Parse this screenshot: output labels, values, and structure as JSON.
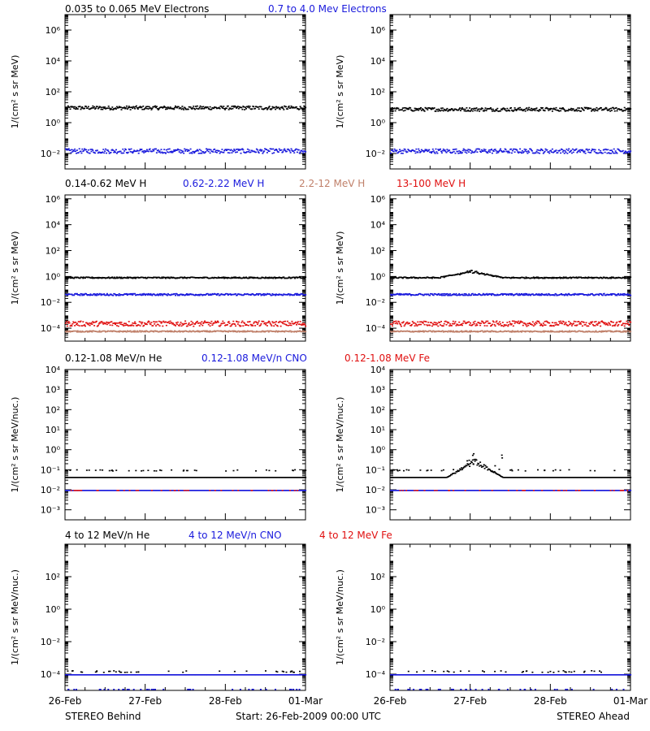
{
  "colors": {
    "black": "#000000",
    "blue": "#1a1adc",
    "red": "#e01010",
    "tan": "#c0806a"
  },
  "x_tick_labels": [
    "26-Feb",
    "27-Feb",
    "28-Feb",
    "01-Mar"
  ],
  "footer": {
    "left": "STEREO Behind",
    "center": "Start: 26-Feb-2009 00:00 UTC",
    "right": "STEREO Ahead"
  },
  "chart_data": [
    {
      "type": "scatter",
      "row": "electrons",
      "legend": [
        {
          "text": "0.035 to 0.065 MeV Electrons",
          "color": "black"
        },
        {
          "text": "0.7 to 4.0 Mev Electrons",
          "color": "blue"
        }
      ],
      "ylabel": "1/(cm² s sr MeV)",
      "yscale": "log",
      "ylim_exp": [
        -3,
        7
      ],
      "ytick_exp": [
        -2,
        0,
        2,
        4,
        6
      ],
      "xlim_days": [
        0,
        3
      ],
      "panels": [
        {
          "spacecraft": "STEREO Behind",
          "series": [
            {
              "color": "black",
              "level_exp": 1.0,
              "spread": 0.12
            },
            {
              "color": "blue",
              "level_exp": -1.8,
              "spread": 0.15
            }
          ]
        },
        {
          "spacecraft": "STEREO Ahead",
          "series": [
            {
              "color": "black",
              "level_exp": 0.9,
              "spread": 0.12
            },
            {
              "color": "blue",
              "level_exp": -1.8,
              "spread": 0.15
            }
          ]
        }
      ]
    },
    {
      "type": "scatter",
      "row": "protons",
      "legend": [
        {
          "text": "0.14-0.62 MeV H",
          "color": "black"
        },
        {
          "text": "0.62-2.22 MeV H",
          "color": "blue"
        },
        {
          "text": "2.2-12 MeV H",
          "color": "tan"
        },
        {
          "text": "13-100 MeV H",
          "color": "red"
        }
      ],
      "ylabel": "1/(cm² s sr MeV)",
      "yscale": "log",
      "ylim_exp": [
        -5,
        6.3
      ],
      "ytick_exp": [
        -4,
        -2,
        0,
        2,
        4,
        6
      ],
      "xlim_days": [
        0,
        3
      ],
      "panels": [
        {
          "spacecraft": "STEREO Behind",
          "series": [
            {
              "color": "black",
              "level_exp": -0.05,
              "spread": 0.05
            },
            {
              "color": "blue",
              "level_exp": -1.35,
              "spread": 0.07
            },
            {
              "color": "red",
              "level_exp": -3.6,
              "spread": 0.2
            },
            {
              "color": "tan",
              "level_exp": -4.2,
              "spread": 0.05
            }
          ]
        },
        {
          "spacecraft": "STEREO Ahead",
          "enhancement": {
            "series": "black",
            "start_day": 0.6,
            "end_day": 1.4,
            "peak_exp": 0.5
          },
          "series": [
            {
              "color": "black",
              "level_exp": -0.05,
              "spread": 0.05
            },
            {
              "color": "blue",
              "level_exp": -1.35,
              "spread": 0.07
            },
            {
              "color": "red",
              "level_exp": -3.6,
              "spread": 0.2
            },
            {
              "color": "tan",
              "level_exp": -4.2,
              "spread": 0.05
            }
          ]
        }
      ]
    },
    {
      "type": "scatter",
      "row": "heavy-ions-low",
      "legend": [
        {
          "text": "0.12-1.08 MeV/n He",
          "color": "black"
        },
        {
          "text": "0.12-1.08 MeV/n CNO",
          "color": "blue"
        },
        {
          "text": "0.12-1.08 MeV Fe",
          "color": "red"
        }
      ],
      "ylabel": "1/(cm² s sr MeV/nuc.)",
      "yscale": "log",
      "ylim_exp": [
        -3.5,
        4
      ],
      "ytick_exp": [
        -3,
        -2,
        -1,
        0,
        1,
        2,
        3,
        4
      ],
      "xlim_days": [
        0,
        3
      ],
      "panels": [
        {
          "spacecraft": "STEREO Behind",
          "series": [
            {
              "color": "black",
              "level_exp": -1.35,
              "spread": 0.0
            },
            {
              "color": "black",
              "level_exp": -1.0,
              "spread": 0.03,
              "sparse": true
            },
            {
              "color": "blue",
              "level_exp": -2.0,
              "spread": 0.0
            },
            {
              "color": "red",
              "level_exp": -2.0,
              "spread": 0.0,
              "sparse": true
            }
          ]
        },
        {
          "spacecraft": "STEREO Ahead",
          "enhancement": {
            "series": "black",
            "start_day": 0.7,
            "end_day": 1.4,
            "peak_exp": -0.4
          },
          "series": [
            {
              "color": "black",
              "level_exp": -1.35,
              "spread": 0.0
            },
            {
              "color": "black",
              "level_exp": -1.0,
              "spread": 0.03,
              "sparse": true
            },
            {
              "color": "blue",
              "level_exp": -2.0,
              "spread": 0.0
            },
            {
              "color": "red",
              "level_exp": -2.0,
              "spread": 0.0,
              "sparse": true
            }
          ]
        }
      ]
    },
    {
      "type": "scatter",
      "row": "heavy-ions-high",
      "legend": [
        {
          "text": "4 to 12 MeV/n He",
          "color": "black"
        },
        {
          "text": "4 to 12 MeV/n CNO",
          "color": "blue"
        },
        {
          "text": "4 to 12 MeV Fe",
          "color": "red"
        }
      ],
      "ylabel": "1/(cm² s sr MeV/nuc.)",
      "yscale": "log",
      "ylim_exp": [
        -5,
        4
      ],
      "ytick_exp": [
        -4,
        -2,
        0,
        2
      ],
      "xlim_days": [
        0,
        3
      ],
      "panels": [
        {
          "spacecraft": "STEREO Behind",
          "series": [
            {
              "color": "blue",
              "level_exp": -4.0,
              "spread": 0.0
            },
            {
              "color": "black",
              "level_exp": -3.8,
              "spread": 0.05,
              "sparse": true
            },
            {
              "color": "blue",
              "level_exp": -4.9,
              "spread": 0.0,
              "sparse": true
            }
          ]
        },
        {
          "spacecraft": "STEREO Ahead",
          "series": [
            {
              "color": "blue",
              "level_exp": -4.0,
              "spread": 0.0
            },
            {
              "color": "black",
              "level_exp": -3.8,
              "spread": 0.05,
              "sparse": true
            },
            {
              "color": "blue",
              "level_exp": -4.9,
              "spread": 0.0,
              "sparse": true
            }
          ]
        }
      ]
    }
  ]
}
